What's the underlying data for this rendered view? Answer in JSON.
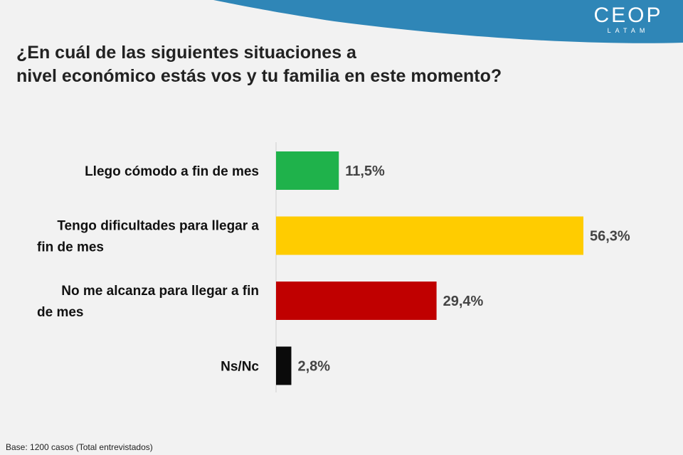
{
  "logo": {
    "brand": "CEOP",
    "sub": "LATAM"
  },
  "question": {
    "line1": "¿En cuál de las siguientes situaciones a",
    "line2": "nivel económico estás vos y tu familia en este momento?"
  },
  "footer": {
    "base": "Base: 1200 casos (Total entrevistados)"
  },
  "colors": {
    "banner": "#2f86b7",
    "background": "#f2f2f2"
  },
  "chart_data": {
    "type": "bar",
    "orientation": "horizontal",
    "categories": [
      "Llego cómodo a fin de mes",
      "Tengo dificultades para llegar a fin de mes",
      "No me alcanza para llegar a fin de mes",
      "Ns/Nc"
    ],
    "category_lines": [
      [
        "Llego cómodo a fin de mes"
      ],
      [
        "Tengo dificultades para llegar a",
        "fin de mes"
      ],
      [
        "No me alcanza para llegar a fin",
        "de mes"
      ],
      [
        "Ns/Nc"
      ]
    ],
    "values": [
      11.5,
      56.3,
      29.4,
      2.8
    ],
    "value_labels": [
      "11,5%",
      "56,3%",
      "29,4%",
      "2,8%"
    ],
    "colors": [
      "#1fb24b",
      "#ffcc00",
      "#c00000",
      "#0a0a0a"
    ],
    "unit": "%",
    "xlim": [
      0,
      56.3
    ],
    "grid": false,
    "legend": "none"
  }
}
